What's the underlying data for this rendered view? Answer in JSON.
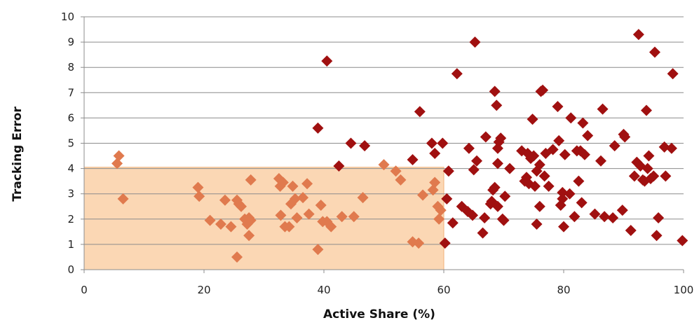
{
  "chart_data": {
    "type": "scatter",
    "xlabel": "Active Share (%)",
    "ylabel": "Tracking Error",
    "xlim": [
      0,
      100
    ],
    "ylim": [
      0,
      10
    ],
    "x_ticks": [
      "0",
      "20",
      "40",
      "60",
      "80",
      "100"
    ],
    "y_ticks": [
      "0",
      "1",
      "2",
      "3",
      "4",
      "5",
      "6",
      "7",
      "8",
      "9",
      "10"
    ],
    "grid": "horizontal",
    "highlight_region": {
      "x": [
        0,
        60
      ],
      "y": [
        0,
        4.05
      ],
      "color": "#fbd7b4"
    },
    "series": [
      {
        "color": "#e07a4e",
        "points": [
          [
            5.8,
            4.5
          ],
          [
            5.5,
            4.2
          ],
          [
            6.5,
            2.8
          ],
          [
            19,
            3.25
          ],
          [
            19.2,
            2.9
          ],
          [
            21,
            1.95
          ],
          [
            22.8,
            1.8
          ],
          [
            23.5,
            2.75
          ],
          [
            24.5,
            1.7
          ],
          [
            25.5,
            2.75
          ],
          [
            25.8,
            2.6
          ],
          [
            26.2,
            2.5
          ],
          [
            25.5,
            0.5
          ],
          [
            26.8,
            2.0
          ],
          [
            27.2,
            1.8
          ],
          [
            27.5,
            2.05
          ],
          [
            27.8,
            1.95
          ],
          [
            27.5,
            1.35
          ],
          [
            27.8,
            3.55
          ],
          [
            32.5,
            3.6
          ],
          [
            32.7,
            3.3
          ],
          [
            33.2,
            3.45
          ],
          [
            32.8,
            2.15
          ],
          [
            33.5,
            1.7
          ],
          [
            34.2,
            1.7
          ],
          [
            34.5,
            2.6
          ],
          [
            34.8,
            3.3
          ],
          [
            35.2,
            2.8
          ],
          [
            35.5,
            2.05
          ],
          [
            36.5,
            2.85
          ],
          [
            37.2,
            3.4
          ],
          [
            37.5,
            2.2
          ],
          [
            39,
            0.8
          ],
          [
            39.5,
            2.55
          ],
          [
            39.8,
            1.9
          ],
          [
            40.5,
            1.9
          ],
          [
            41.2,
            1.7
          ],
          [
            43,
            2.1
          ],
          [
            45,
            2.1
          ],
          [
            46.5,
            2.85
          ],
          [
            50,
            4.15
          ],
          [
            52,
            3.9
          ],
          [
            52.8,
            3.55
          ],
          [
            54.8,
            1.1
          ],
          [
            55.8,
            1.05
          ],
          [
            56.5,
            2.95
          ],
          [
            58.5,
            3.45
          ],
          [
            58.2,
            3.15
          ],
          [
            59,
            2.5
          ],
          [
            59.5,
            2.35
          ],
          [
            59.2,
            2.0
          ]
        ]
      },
      {
        "color": "#a01010",
        "points": [
          [
            39,
            5.6
          ],
          [
            40.5,
            8.25
          ],
          [
            42.5,
            4.1
          ],
          [
            44.5,
            5.0
          ],
          [
            46.8,
            4.9
          ],
          [
            54.8,
            4.35
          ],
          [
            56,
            6.25
          ],
          [
            58,
            5.0
          ],
          [
            58.5,
            4.6
          ],
          [
            59.8,
            5.0
          ],
          [
            60.2,
            1.05
          ],
          [
            60.5,
            2.8
          ],
          [
            60.8,
            3.9
          ],
          [
            61.5,
            1.85
          ],
          [
            62.2,
            7.75
          ],
          [
            63,
            2.5
          ],
          [
            64,
            2.3
          ],
          [
            64.2,
            4.8
          ],
          [
            64.8,
            2.15
          ],
          [
            65,
            3.95
          ],
          [
            65.2,
            9.0
          ],
          [
            65.5,
            4.3
          ],
          [
            66.5,
            1.45
          ],
          [
            66.8,
            2.05
          ],
          [
            67,
            5.25
          ],
          [
            67.8,
            2.6
          ],
          [
            68,
            2.7
          ],
          [
            68.2,
            3.15
          ],
          [
            68.5,
            3.25
          ],
          [
            68.5,
            7.05
          ],
          [
            68.8,
            6.5
          ],
          [
            69,
            4.8
          ],
          [
            69,
            4.2
          ],
          [
            69.2,
            5.05
          ],
          [
            69.5,
            5.2
          ],
          [
            69,
            2.5
          ],
          [
            69.8,
            2.0
          ],
          [
            70,
            1.95
          ],
          [
            70.2,
            2.9
          ],
          [
            71,
            4.0
          ],
          [
            73,
            4.7
          ],
          [
            73.5,
            3.5
          ],
          [
            73.8,
            3.65
          ],
          [
            74,
            4.6
          ],
          [
            74.2,
            3.4
          ],
          [
            74.5,
            4.4
          ],
          [
            74.8,
            5.95
          ],
          [
            75,
            4.5
          ],
          [
            75.2,
            3.3
          ],
          [
            75.5,
            1.8
          ],
          [
            75.5,
            3.9
          ],
          [
            76,
            2.5
          ],
          [
            76,
            4.15
          ],
          [
            76.2,
            7.05
          ],
          [
            76.5,
            7.1
          ],
          [
            76.8,
            3.7
          ],
          [
            77,
            4.6
          ],
          [
            77.5,
            3.3
          ],
          [
            78.2,
            4.75
          ],
          [
            79,
            6.45
          ],
          [
            79.2,
            5.1
          ],
          [
            79.5,
            2.55
          ],
          [
            79.8,
            2.8
          ],
          [
            79.8,
            3.05
          ],
          [
            80,
            1.7
          ],
          [
            80.2,
            4.55
          ],
          [
            81,
            3.0
          ],
          [
            81.2,
            6.0
          ],
          [
            81.8,
            2.1
          ],
          [
            82.2,
            4.7
          ],
          [
            82.5,
            3.5
          ],
          [
            82.8,
            4.7
          ],
          [
            83,
            2.65
          ],
          [
            83.2,
            5.8
          ],
          [
            83.5,
            4.55
          ],
          [
            84,
            5.3
          ],
          [
            85.2,
            2.2
          ],
          [
            86.2,
            4.3
          ],
          [
            86.5,
            6.35
          ],
          [
            86.8,
            2.1
          ],
          [
            88.2,
            2.05
          ],
          [
            88.5,
            4.9
          ],
          [
            89.8,
            2.35
          ],
          [
            90,
            5.35
          ],
          [
            90.2,
            5.25
          ],
          [
            91.2,
            1.55
          ],
          [
            91.8,
            3.7
          ],
          [
            92.2,
            4.25
          ],
          [
            92.5,
            9.3
          ],
          [
            92.8,
            4.1
          ],
          [
            93.2,
            3.55
          ],
          [
            93.5,
            3.5
          ],
          [
            93.8,
            6.3
          ],
          [
            94,
            4.0
          ],
          [
            94.2,
            4.5
          ],
          [
            94.5,
            3.6
          ],
          [
            95,
            3.7
          ],
          [
            95.2,
            8.6
          ],
          [
            95.5,
            1.35
          ],
          [
            95.8,
            2.05
          ],
          [
            96.8,
            4.85
          ],
          [
            97,
            3.7
          ],
          [
            98,
            4.8
          ],
          [
            98.2,
            7.75
          ],
          [
            99.8,
            1.15
          ]
        ]
      }
    ]
  }
}
